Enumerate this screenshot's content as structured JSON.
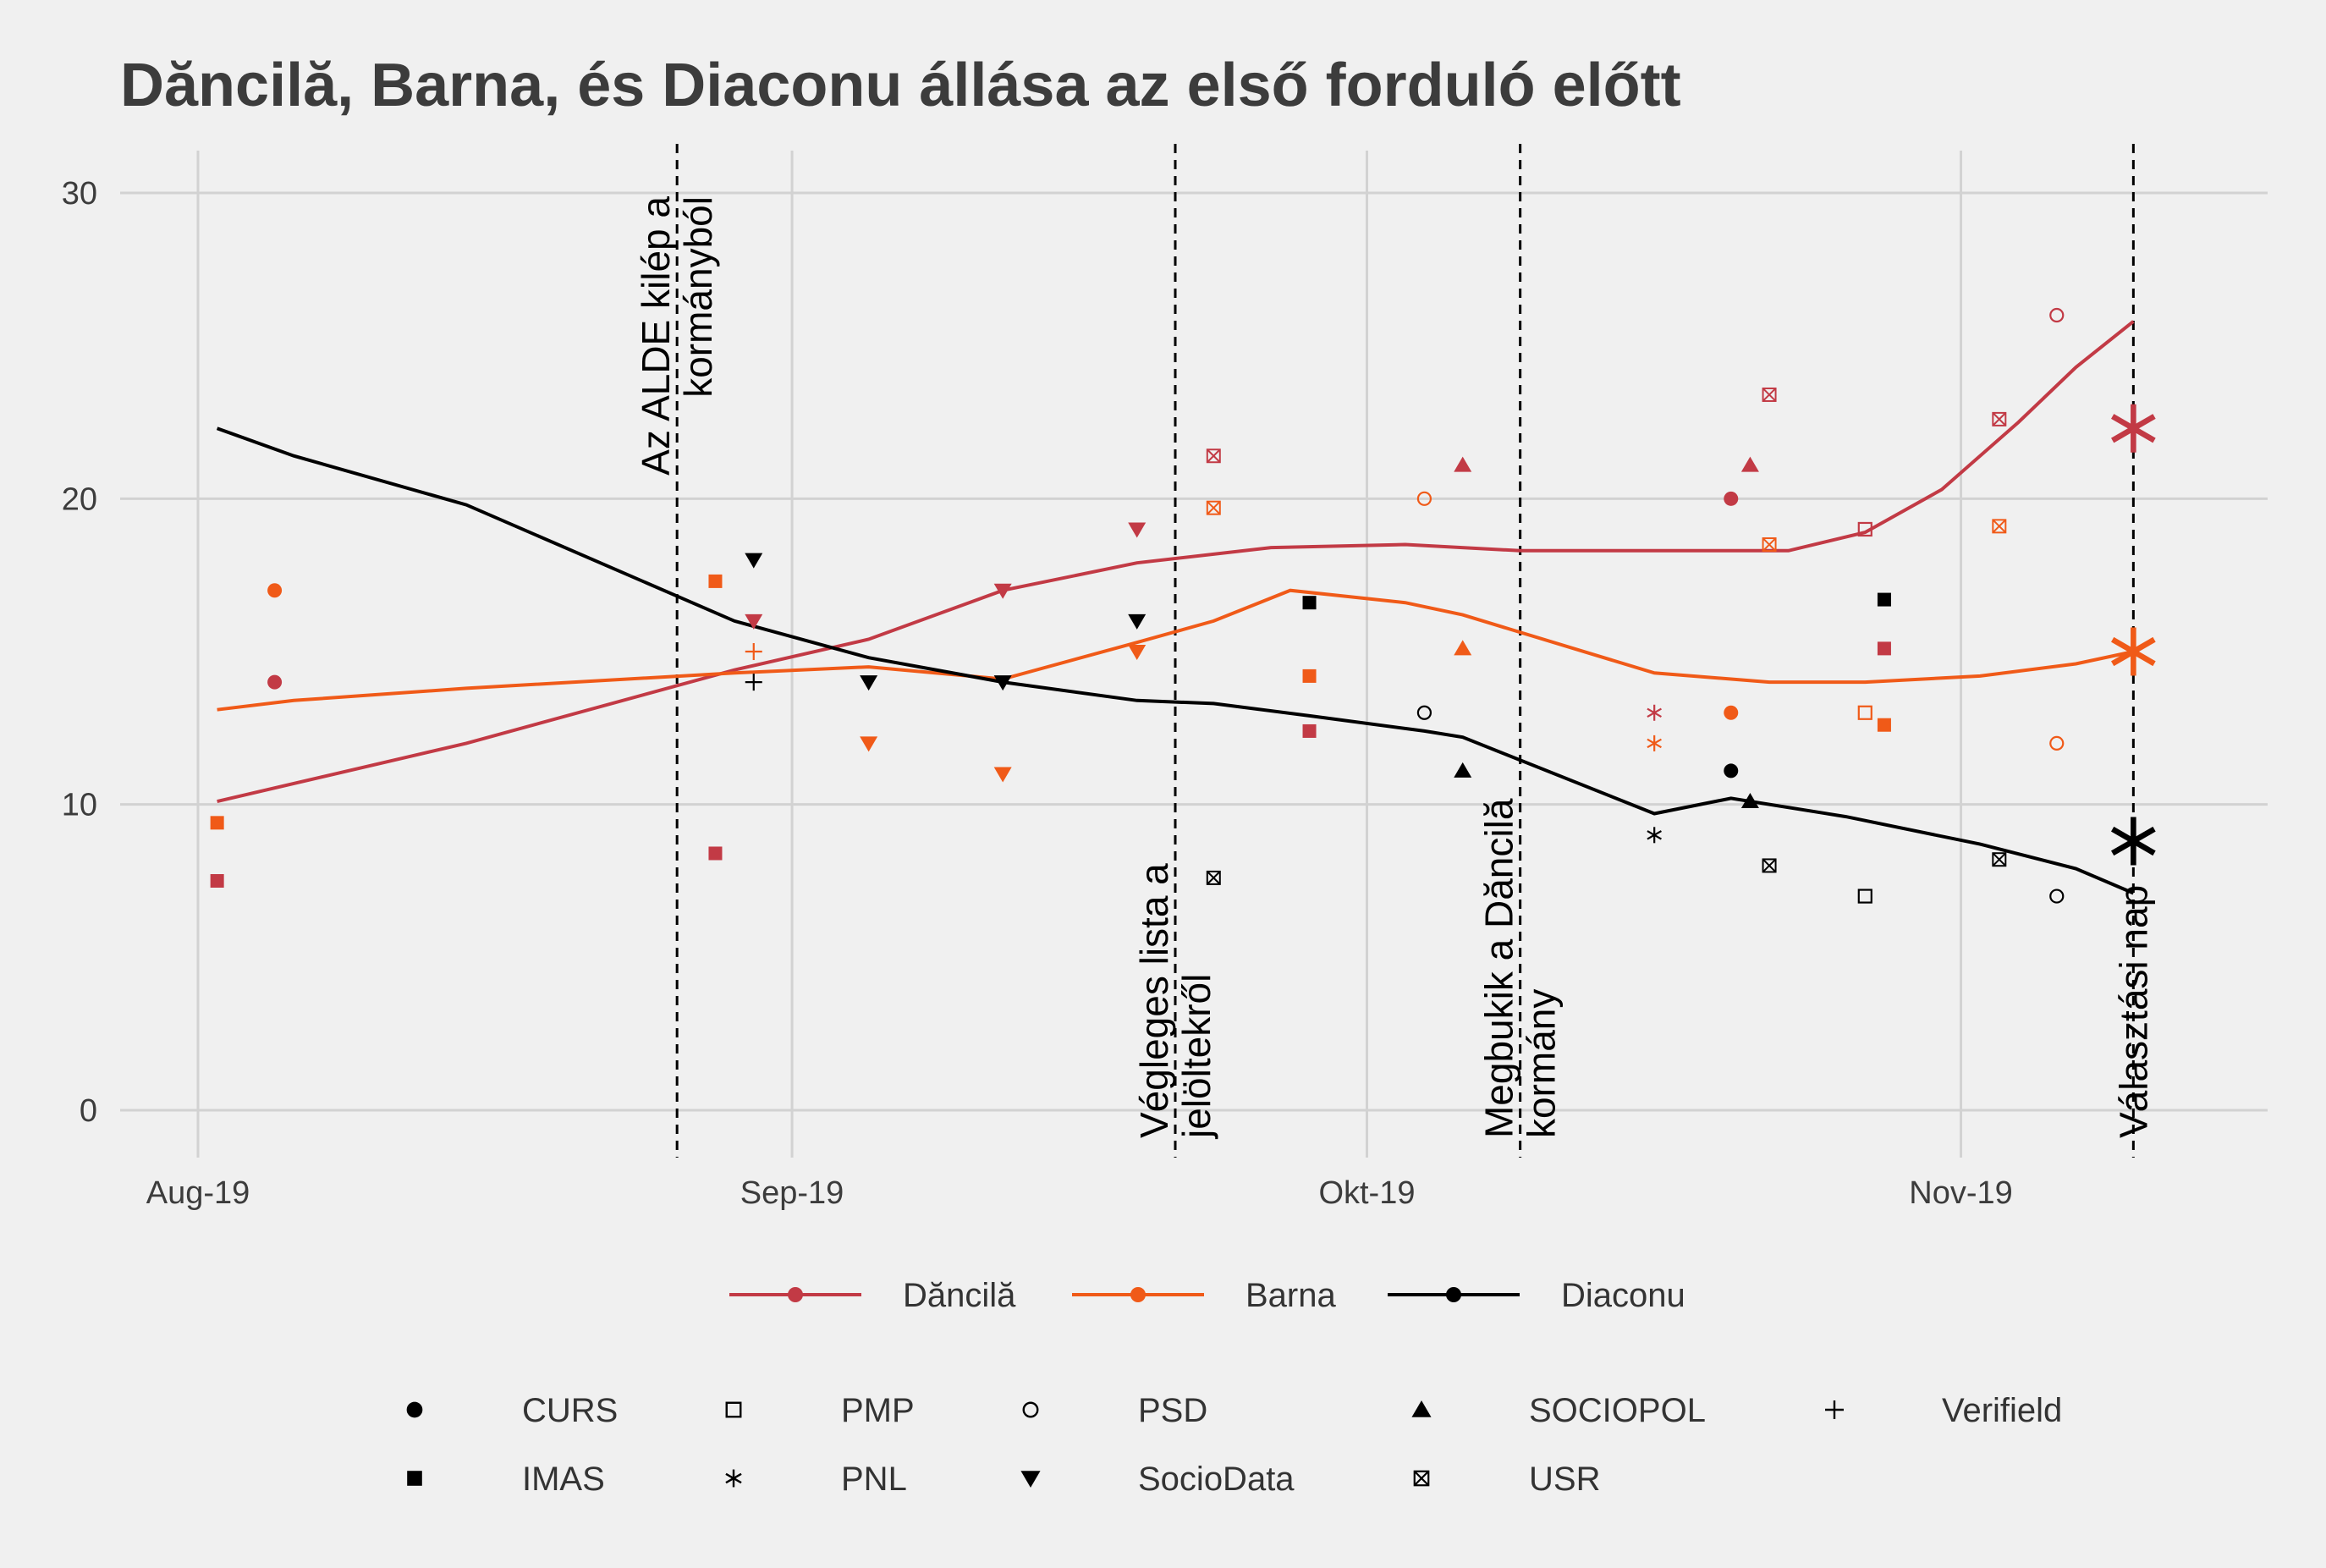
{
  "chart_data": {
    "type": "scatter",
    "title": "Dăncilă, Barna, és Diaconu állása az első forduló előtt",
    "xlabel": "",
    "ylabel": "",
    "x_domain": [
      "2019-08-01",
      "2019-11-11"
    ],
    "ylim": [
      -1.4,
      31.2
    ],
    "y_ticks": [
      0,
      10,
      20,
      30
    ],
    "x_ticks": [
      {
        "date": "2019-08-01",
        "label": "Aug-19"
      },
      {
        "date": "2019-09-01",
        "label": "Sep-19"
      },
      {
        "date": "2019-10-01",
        "label": "Okt-19"
      },
      {
        "date": "2019-11-01",
        "label": "Nov-19"
      }
    ],
    "grid": true,
    "legend_placement": "bottom",
    "annotations": [
      {
        "date": "2019-08-26",
        "lines": [
          "Az ALDE kilép a",
          "kormányból"
        ],
        "anchor": "top"
      },
      {
        "date": "2019-09-21",
        "lines": [
          "Végleges lista a",
          "jelöltekről"
        ],
        "anchor": "bottom"
      },
      {
        "date": "2019-10-09",
        "lines": [
          "Megbukik a Dăncilă",
          "kormány"
        ],
        "anchor": "bottom"
      },
      {
        "date": "2019-11-10",
        "lines": [
          "Választási nap"
        ],
        "anchor": "bottom"
      }
    ],
    "candidates": [
      {
        "name": "Dăncilă",
        "color": "#c23a45"
      },
      {
        "name": "Barna",
        "color": "#f05a18"
      },
      {
        "name": "Diaconu",
        "color": "#000000"
      }
    ],
    "pollsters": [
      {
        "name": "CURS",
        "shape": "circle"
      },
      {
        "name": "IMAS",
        "shape": "square"
      },
      {
        "name": "PMP",
        "shape": "open-square"
      },
      {
        "name": "PNL",
        "shape": "asterisk"
      },
      {
        "name": "PSD",
        "shape": "open-circle"
      },
      {
        "name": "SocioData",
        "shape": "triangle-down"
      },
      {
        "name": "SOCIOPOL",
        "shape": "triangle-up"
      },
      {
        "name": "USR",
        "shape": "boxed-x"
      },
      {
        "name": "Verifield",
        "shape": "plus"
      }
    ],
    "legend_pollster_order": [
      "CURS",
      "PMP",
      "PSD",
      "SOCIOPOL",
      "Verifield",
      "IMAS",
      "PNL",
      "SocioData",
      "USR"
    ],
    "series": [
      {
        "name": "Dăncilă",
        "trend": [
          [
            "2019-08-02",
            10.1
          ],
          [
            "2019-08-15",
            12.0
          ],
          [
            "2019-08-29",
            14.4
          ],
          [
            "2019-09-05",
            15.4
          ],
          [
            "2019-09-12",
            17.0
          ],
          [
            "2019-09-19",
            17.9
          ],
          [
            "2019-09-26",
            18.4
          ],
          [
            "2019-10-03",
            18.5
          ],
          [
            "2019-10-09",
            18.3
          ],
          [
            "2019-10-17",
            18.3
          ],
          [
            "2019-10-23",
            18.3
          ],
          [
            "2019-10-27",
            18.9
          ],
          [
            "2019-10-31",
            20.3
          ],
          [
            "2019-11-04",
            22.5
          ],
          [
            "2019-11-07",
            24.3
          ],
          [
            "2019-11-10",
            25.8
          ]
        ],
        "points": [
          {
            "date": "2019-08-02",
            "value": 7.5,
            "pollster": "IMAS"
          },
          {
            "date": "2019-08-05",
            "value": 14.0,
            "pollster": "CURS"
          },
          {
            "date": "2019-08-28",
            "value": 8.4,
            "pollster": "IMAS"
          },
          {
            "date": "2019-08-30",
            "value": 16.0,
            "pollster": "SocioData"
          },
          {
            "date": "2019-09-12",
            "value": 17.0,
            "pollster": "SocioData"
          },
          {
            "date": "2019-09-19",
            "value": 19.0,
            "pollster": "SocioData"
          },
          {
            "date": "2019-09-23",
            "value": 21.4,
            "pollster": "USR"
          },
          {
            "date": "2019-09-28",
            "value": 12.4,
            "pollster": "IMAS"
          },
          {
            "date": "2019-10-06",
            "value": 21.1,
            "pollster": "SOCIOPOL"
          },
          {
            "date": "2019-10-16",
            "value": 13.0,
            "pollster": "PNL"
          },
          {
            "date": "2019-10-20",
            "value": 20.0,
            "pollster": "CURS"
          },
          {
            "date": "2019-10-21",
            "value": 21.1,
            "pollster": "SOCIOPOL"
          },
          {
            "date": "2019-10-22",
            "value": 23.4,
            "pollster": "USR"
          },
          {
            "date": "2019-10-27",
            "value": 19.0,
            "pollster": "PMP"
          },
          {
            "date": "2019-10-28",
            "value": 15.1,
            "pollster": "IMAS"
          },
          {
            "date": "2019-11-03",
            "value": 22.6,
            "pollster": "USR"
          },
          {
            "date": "2019-11-06",
            "value": 26.0,
            "pollster": "PSD"
          }
        ],
        "result": 22.3
      },
      {
        "name": "Barna",
        "trend": [
          [
            "2019-08-02",
            13.1
          ],
          [
            "2019-08-06",
            13.4
          ],
          [
            "2019-08-15",
            13.8
          ],
          [
            "2019-08-29",
            14.3
          ],
          [
            "2019-09-05",
            14.5
          ],
          [
            "2019-09-12",
            14.1
          ],
          [
            "2019-09-19",
            15.3
          ],
          [
            "2019-09-23",
            16.0
          ],
          [
            "2019-09-27",
            17.0
          ],
          [
            "2019-10-03",
            16.6
          ],
          [
            "2019-10-06",
            16.2
          ],
          [
            "2019-10-16",
            14.3
          ],
          [
            "2019-10-22",
            14.0
          ],
          [
            "2019-10-27",
            14.0
          ],
          [
            "2019-11-02",
            14.2
          ],
          [
            "2019-11-07",
            14.6
          ],
          [
            "2019-11-10",
            15.0
          ]
        ],
        "points": [
          {
            "date": "2019-08-02",
            "value": 9.4,
            "pollster": "IMAS"
          },
          {
            "date": "2019-08-05",
            "value": 17.0,
            "pollster": "CURS"
          },
          {
            "date": "2019-08-28",
            "value": 17.3,
            "pollster": "IMAS"
          },
          {
            "date": "2019-08-30",
            "value": 15.0,
            "pollster": "Verifield"
          },
          {
            "date": "2019-09-05",
            "value": 12.0,
            "pollster": "SocioData"
          },
          {
            "date": "2019-09-12",
            "value": 11.0,
            "pollster": "SocioData"
          },
          {
            "date": "2019-09-19",
            "value": 15.0,
            "pollster": "SocioData"
          },
          {
            "date": "2019-09-23",
            "value": 19.7,
            "pollster": "USR"
          },
          {
            "date": "2019-09-28",
            "value": 14.2,
            "pollster": "IMAS"
          },
          {
            "date": "2019-10-04",
            "value": 20.0,
            "pollster": "PSD"
          },
          {
            "date": "2019-10-06",
            "value": 15.1,
            "pollster": "SOCIOPOL"
          },
          {
            "date": "2019-10-16",
            "value": 12.0,
            "pollster": "PNL"
          },
          {
            "date": "2019-10-20",
            "value": 13.0,
            "pollster": "CURS"
          },
          {
            "date": "2019-10-22",
            "value": 18.5,
            "pollster": "USR"
          },
          {
            "date": "2019-10-27",
            "value": 13.0,
            "pollster": "PMP"
          },
          {
            "date": "2019-10-28",
            "value": 12.6,
            "pollster": "IMAS"
          },
          {
            "date": "2019-11-03",
            "value": 19.1,
            "pollster": "USR"
          },
          {
            "date": "2019-11-06",
            "value": 12.0,
            "pollster": "PSD"
          }
        ],
        "result": 15.0
      },
      {
        "name": "Diaconu",
        "trend": [
          [
            "2019-08-02",
            22.3
          ],
          [
            "2019-08-06",
            21.4
          ],
          [
            "2019-08-15",
            19.8
          ],
          [
            "2019-08-29",
            16.0
          ],
          [
            "2019-09-05",
            14.8
          ],
          [
            "2019-09-12",
            14.0
          ],
          [
            "2019-09-19",
            13.4
          ],
          [
            "2019-09-23",
            13.3
          ],
          [
            "2019-09-28",
            12.9
          ],
          [
            "2019-10-04",
            12.4
          ],
          [
            "2019-10-06",
            12.2
          ],
          [
            "2019-10-16",
            9.7
          ],
          [
            "2019-10-20",
            10.2
          ],
          [
            "2019-10-26",
            9.6
          ],
          [
            "2019-11-02",
            8.7
          ],
          [
            "2019-11-07",
            7.9
          ],
          [
            "2019-11-10",
            7.1
          ]
        ],
        "points": [
          {
            "date": "2019-08-30",
            "value": 18.0,
            "pollster": "SocioData"
          },
          {
            "date": "2019-08-30",
            "value": 14.0,
            "pollster": "Verifield"
          },
          {
            "date": "2019-09-05",
            "value": 14.0,
            "pollster": "SocioData"
          },
          {
            "date": "2019-09-12",
            "value": 14.0,
            "pollster": "SocioData"
          },
          {
            "date": "2019-09-19",
            "value": 16.0,
            "pollster": "SocioData"
          },
          {
            "date": "2019-09-23",
            "value": 7.6,
            "pollster": "USR"
          },
          {
            "date": "2019-09-28",
            "value": 16.6,
            "pollster": "IMAS"
          },
          {
            "date": "2019-10-04",
            "value": 13.0,
            "pollster": "PSD"
          },
          {
            "date": "2019-10-06",
            "value": 11.1,
            "pollster": "SOCIOPOL"
          },
          {
            "date": "2019-10-16",
            "value": 9.0,
            "pollster": "PNL"
          },
          {
            "date": "2019-10-20",
            "value": 11.1,
            "pollster": "CURS"
          },
          {
            "date": "2019-10-21",
            "value": 10.1,
            "pollster": "SOCIOPOL"
          },
          {
            "date": "2019-10-22",
            "value": 8.0,
            "pollster": "USR"
          },
          {
            "date": "2019-10-27",
            "value": 7.0,
            "pollster": "PMP"
          },
          {
            "date": "2019-10-28",
            "value": 16.7,
            "pollster": "IMAS"
          },
          {
            "date": "2019-11-03",
            "value": 8.2,
            "pollster": "USR"
          },
          {
            "date": "2019-11-06",
            "value": 7.0,
            "pollster": "PSD"
          }
        ],
        "result": 8.8
      }
    ]
  }
}
